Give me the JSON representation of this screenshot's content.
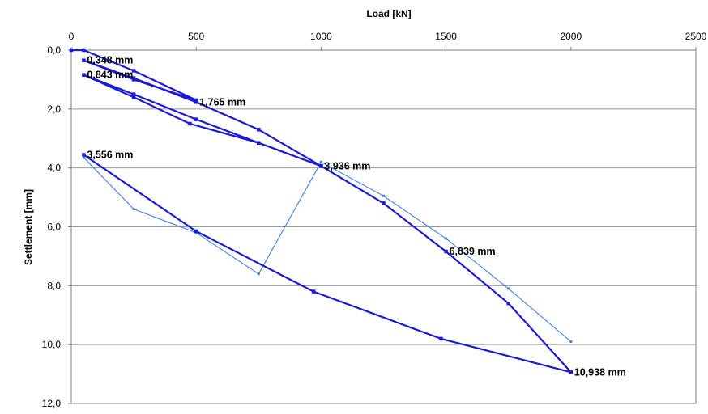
{
  "chart_data": {
    "type": "line",
    "xlabel": "Load [kN]",
    "ylabel": "Settlement [mm]",
    "xlim": [
      0,
      2500
    ],
    "ylim": [
      0,
      12
    ],
    "x_axis_position": "top",
    "y_axis_inverted": true,
    "x_ticks": [
      "0",
      "500",
      "1000",
      "1500",
      "2000",
      "2500"
    ],
    "y_ticks": [
      "0,0",
      "2,0",
      "4,0",
      "6,0",
      "8,0",
      "10,0",
      "12,0"
    ],
    "grid": "horizontal",
    "legend": "none",
    "colors": {
      "primary": "#1a1ad6",
      "secondary": "#3f7fe6",
      "grid": "#999999"
    },
    "series": [
      {
        "x": [
          0,
          50,
          250,
          500,
          250,
          50,
          250,
          500,
          750,
          1000,
          750,
          500,
          250,
          50,
          250,
          475,
          750,
          1000,
          1250,
          1500,
          1750,
          2000,
          1480,
          970,
          500,
          50
        ],
        "y": [
          0,
          0,
          0.7,
          1.7,
          1.0,
          0.35,
          0.95,
          1.765,
          2.7,
          3.936,
          3.15,
          2.35,
          1.5,
          0.843,
          1.6,
          2.5,
          3.15,
          3.936,
          5.2,
          6.839,
          8.6,
          10.938,
          9.8,
          8.2,
          6.15,
          3.556
        ]
      },
      {
        "x": [
          50,
          250,
          500,
          750,
          1000,
          1250,
          1500,
          1750,
          2000
        ],
        "y": [
          3.65,
          5.4,
          6.2,
          7.6,
          3.8,
          4.95,
          6.4,
          8.1,
          9.9
        ]
      }
    ],
    "annotations": [
      {
        "text": "0,348 mm",
        "x": 50,
        "y": 0.348
      },
      {
        "text": "0,843 mm",
        "x": 50,
        "y": 0.843
      },
      {
        "text": "1,765 mm",
        "x": 500,
        "y": 1.765
      },
      {
        "text": "3,936 mm",
        "x": 1000,
        "y": 3.936
      },
      {
        "text": "3,556 mm",
        "x": 50,
        "y": 3.556
      },
      {
        "text": "6,839 mm",
        "x": 1500,
        "y": 6.839
      },
      {
        "text": "10,938 mm",
        "x": 2000,
        "y": 10.938
      }
    ]
  }
}
